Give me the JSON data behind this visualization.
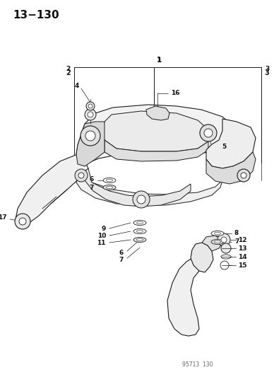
{
  "title": "13−130",
  "bg_color": "#ffffff",
  "line_color": "#1a1a1a",
  "label_color": "#111111",
  "footer": "95713  130",
  "fig_w": 3.88,
  "fig_h": 5.33,
  "dpi": 100
}
